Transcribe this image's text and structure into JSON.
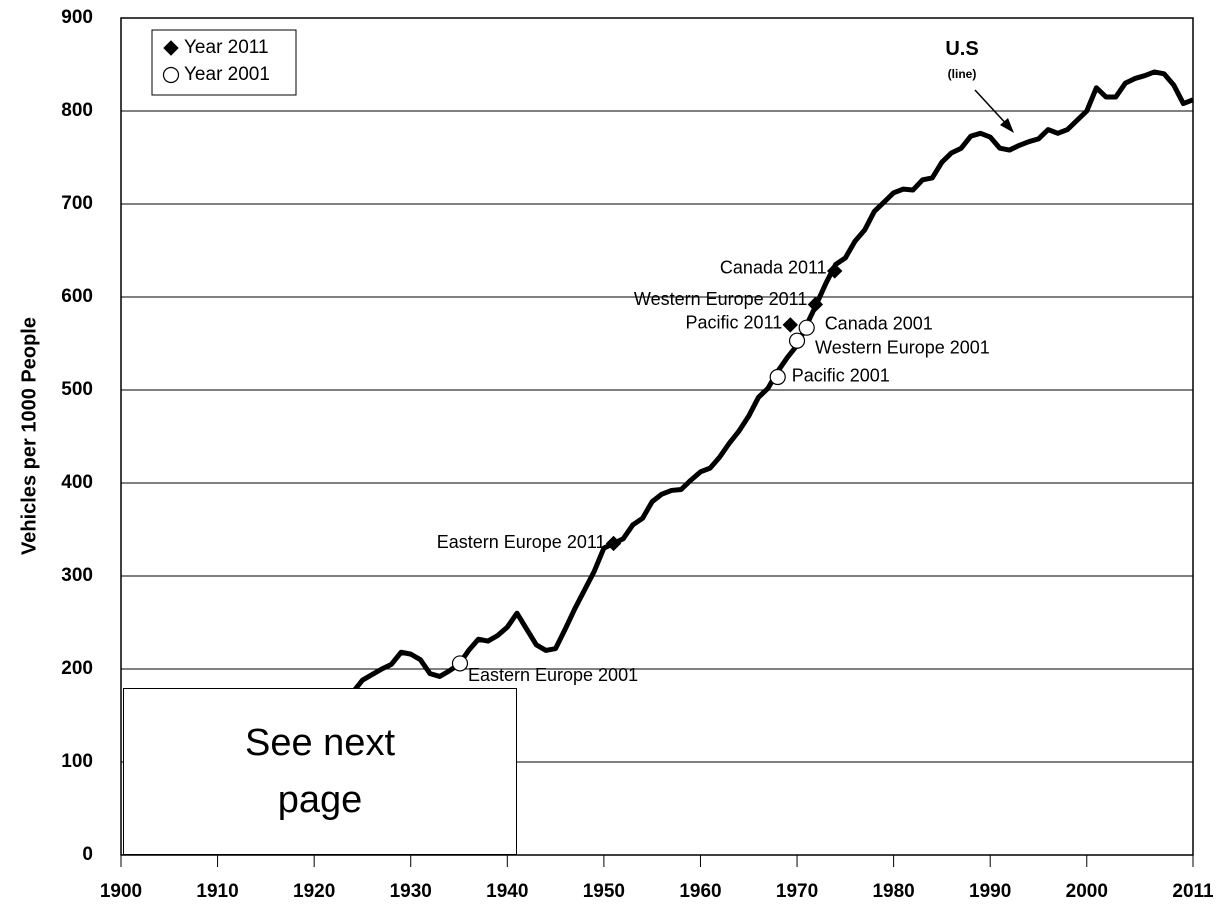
{
  "chart_data": {
    "type": "line",
    "y_label": "Vehicles per 1000 People",
    "xlim": [
      1900,
      2011
    ],
    "xticks": [
      1900,
      1910,
      1920,
      1930,
      1940,
      1950,
      1960,
      1970,
      1980,
      1990,
      2000,
      2011
    ],
    "ylim": [
      0,
      900
    ],
    "yticks": [
      0,
      100,
      200,
      300,
      400,
      500,
      600,
      700,
      800,
      900
    ],
    "grid": true,
    "legend": "upper left",
    "series": [
      {
        "name": "U.S",
        "annotation": "(line)",
        "color": "#000000",
        "x": [
          1924,
          1925,
          1926,
          1927,
          1928,
          1929,
          1930,
          1931,
          1932,
          1933,
          1934,
          1935,
          1936,
          1937,
          1938,
          1939,
          1940,
          1941,
          1942,
          1943,
          1944,
          1945,
          1946,
          1947,
          1948,
          1949,
          1950,
          1951,
          1952,
          1953,
          1954,
          1955,
          1956,
          1957,
          1958,
          1959,
          1960,
          1961,
          1962,
          1963,
          1964,
          1965,
          1966,
          1967,
          1968,
          1969,
          1970,
          1971,
          1972,
          1973,
          1974,
          1975,
          1976,
          1977,
          1978,
          1979,
          1980,
          1981,
          1982,
          1983,
          1984,
          1985,
          1986,
          1987,
          1988,
          1989,
          1990,
          1991,
          1992,
          1993,
          1994,
          1995,
          1996,
          1997,
          1998,
          1999,
          2000,
          2001,
          2002,
          2003,
          2004,
          2005,
          2006,
          2007,
          2008,
          2009,
          2010,
          2011
        ],
        "values": [
          175,
          188,
          194,
          200,
          205,
          218,
          216,
          210,
          195,
          192,
          198,
          205,
          220,
          232,
          230,
          236,
          245,
          260,
          243,
          226,
          220,
          222,
          243,
          265,
          285,
          305,
          330,
          335,
          340,
          355,
          362,
          380,
          388,
          392,
          393,
          403,
          412,
          416,
          428,
          443,
          456,
          472,
          492,
          502,
          520,
          535,
          548,
          570,
          592,
          615,
          635,
          642,
          660,
          672,
          692,
          702,
          712,
          716,
          715,
          726,
          728,
          745,
          755,
          760,
          773,
          776,
          772,
          760,
          758,
          763,
          767,
          770,
          780,
          776,
          780,
          790,
          800,
          825,
          815,
          815,
          830,
          835,
          838,
          842,
          840,
          828,
          808,
          812
        ]
      },
      {
        "name": "Year 2011",
        "marker": "diamond",
        "color": "#000000",
        "labels": [
          "Canada 2011",
          "Western Europe 2011",
          "Pacific 2011",
          "Eastern Europe 2011"
        ],
        "x": [
          1973.9,
          1971.9,
          1969.3,
          1951.0
        ],
        "values": [
          628,
          592,
          570,
          335
        ]
      },
      {
        "name": "Year 2001",
        "marker": "circle",
        "color": "#ffffff",
        "labels": [
          "Canada 2001",
          "Western Europe 2001",
          "Pacific 2001",
          "Eastern Europe 2001"
        ],
        "x": [
          1971.0,
          1970.0,
          1968.0,
          1935.1
        ],
        "values": [
          567,
          553,
          514,
          206
        ]
      }
    ],
    "note_box": "See next page"
  }
}
